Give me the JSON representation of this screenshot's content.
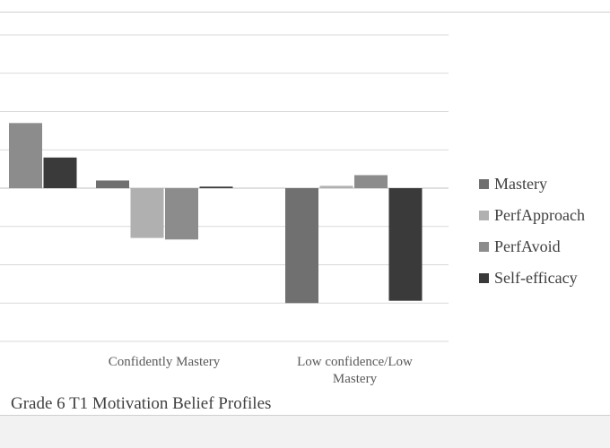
{
  "caption": "Grade 6 T1 Motivation Belief Profiles",
  "chart_data": {
    "type": "bar",
    "categories": [
      "",
      "Confidently Mastery",
      "Low confidence/Low Mastery"
    ],
    "category_lines": [
      [
        ""
      ],
      [
        "Confidently Mastery"
      ],
      [
        "Low confidence/Low",
        "Mastery"
      ]
    ],
    "series": [
      {
        "name": "Mastery",
        "color": "#707070",
        "values": [
          null,
          0.1,
          -1.5
        ]
      },
      {
        "name": "PerfApproach",
        "color": "#b0b0b0",
        "values": [
          null,
          -0.65,
          0.03
        ]
      },
      {
        "name": "PerfAvoid",
        "color": "#8c8c8c",
        "values": [
          0.85,
          -0.67,
          0.17
        ]
      },
      {
        "name": "Self-efficacy",
        "color": "#3a3a3a",
        "values": [
          0.4,
          0.02,
          -1.47
        ]
      }
    ],
    "ylim": [
      -2,
      2.25
    ],
    "grid": true,
    "legend_position": "right"
  }
}
